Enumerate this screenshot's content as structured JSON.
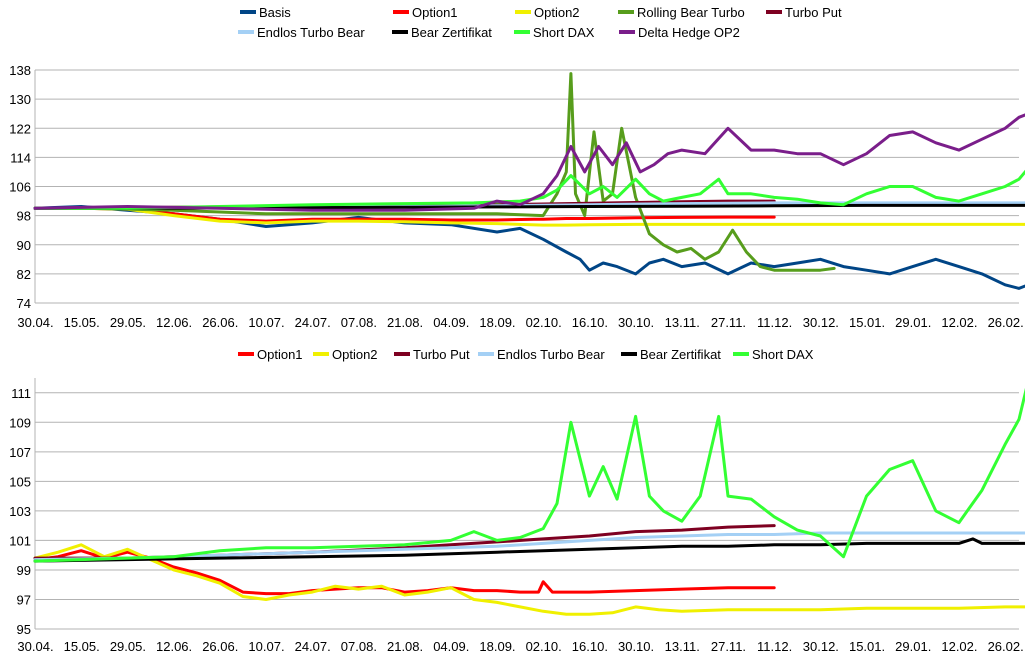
{
  "colors": {
    "Basis": "#004586",
    "Option1": "#ff0000",
    "Option2": "#f0f000",
    "Rolling Bear Turbo": "#579d1c",
    "Turbo Put": "#7e0021",
    "Endlos Turbo Bear": "#a4d0f5",
    "Bear Zertifikat": "#000000",
    "Short DAX": "#33ff33",
    "Delta Hedge OP2": "#7a1e8a",
    "grid": "#b3b3b3"
  },
  "chart_data": [
    {
      "type": "line",
      "title": "",
      "legend_position": "top",
      "legend": [
        "Basis",
        "Option1",
        "Option2",
        "Rolling Bear Turbo",
        "Turbo Put",
        "Endlos Turbo Bear",
        "Bear Zertifikat",
        "Short DAX",
        "Delta Hedge OP2"
      ],
      "x_ticks": [
        "30.04.",
        "15.05.",
        "29.05.",
        "12.06.",
        "26.06.",
        "10.07.",
        "24.07.",
        "07.08.",
        "21.08.",
        "04.09.",
        "18.09.",
        "02.10.",
        "16.10.",
        "30.10.",
        "13.11.",
        "27.11.",
        "11.12.",
        "30.12.",
        "15.01.",
        "29.01.",
        "12.02.",
        "26.02."
      ],
      "y_ticks": [
        74,
        82,
        90,
        98,
        106,
        114,
        122,
        130,
        138
      ],
      "ylim": [
        74,
        138
      ],
      "grid": true,
      "series": [
        {
          "name": "Basis",
          "x": [
            0,
            1,
            2,
            3,
            4,
            5,
            6,
            7,
            8,
            9,
            10,
            10.5,
            11,
            11.5,
            11.8,
            12,
            12.3,
            12.6,
            13,
            13.3,
            13.6,
            14,
            14.5,
            15,
            15.5,
            16,
            16.5,
            17,
            17.5,
            18,
            18.5,
            19,
            19.5,
            20,
            20.5,
            21,
            21.3,
            21.5,
            21.7
          ],
          "values": [
            100,
            100.5,
            99.5,
            98.5,
            97,
            95,
            96,
            97.5,
            96,
            95.5,
            93.5,
            94.5,
            91.5,
            88,
            86,
            83,
            85,
            84,
            82,
            85,
            86,
            84,
            85,
            82,
            85,
            84,
            85,
            86,
            84,
            83,
            82,
            84,
            86,
            84,
            82,
            79,
            78,
            79,
            78
          ]
        },
        {
          "name": "Option1",
          "x": [
            0,
            1,
            2,
            3,
            4,
            5,
            6,
            7,
            8,
            9,
            10,
            10.8,
            11,
            11.5,
            12,
            13,
            14,
            15,
            16
          ],
          "values": [
            100,
            100,
            99.8,
            98.5,
            97,
            96.5,
            97,
            97,
            97,
            96.8,
            96.8,
            97,
            97,
            97.2,
            97.2,
            97.4,
            97.5,
            97.6,
            97.6
          ]
        },
        {
          "name": "Option2",
          "x": [
            0,
            1,
            2,
            3,
            4,
            5,
            6,
            7,
            8,
            9,
            10,
            11,
            11.5,
            12,
            13,
            14,
            15,
            16,
            17,
            18,
            19,
            20,
            21,
            21.7
          ],
          "values": [
            100,
            100,
            99.8,
            98,
            96.5,
            96,
            96.5,
            96.5,
            96.3,
            96,
            95.8,
            95.4,
            95.4,
            95.5,
            95.6,
            95.6,
            95.6,
            95.6,
            95.6,
            95.6,
            95.6,
            95.6,
            95.6,
            95.6
          ]
        },
        {
          "name": "Rolling Bear Turbo",
          "x": [
            0,
            1,
            2,
            3,
            4,
            5,
            6,
            7,
            8,
            9,
            10,
            11,
            11.3,
            11.5,
            11.6,
            11.7,
            11.9,
            12.1,
            12.3,
            12.5,
            12.7,
            13,
            13.3,
            13.6,
            13.9,
            14.2,
            14.5,
            14.8,
            15.1,
            15.4,
            15.7,
            16,
            16.5,
            17,
            17.3
          ],
          "values": [
            100,
            100,
            99.8,
            99.5,
            99,
            98.5,
            98.5,
            98.5,
            98.5,
            98.5,
            98.5,
            98,
            104,
            110,
            137,
            104,
            98,
            121,
            102,
            104,
            122,
            103,
            93,
            90,
            88,
            89,
            86,
            88,
            94,
            88,
            84,
            83,
            83,
            83,
            83.5
          ]
        },
        {
          "name": "Turbo Put",
          "x": [
            0,
            2,
            4,
            6,
            8,
            10,
            11,
            12,
            13,
            14,
            15,
            16
          ],
          "values": [
            100,
            100.2,
            100.4,
            100.6,
            100.8,
            101,
            101.2,
            101.4,
            101.6,
            101.8,
            102,
            102
          ]
        },
        {
          "name": "Endlos Turbo Bear",
          "x": [
            0,
            2,
            4,
            6,
            8,
            10,
            12,
            14,
            16,
            18,
            20,
            21.7
          ],
          "values": [
            100,
            100.1,
            100.2,
            100.3,
            100.5,
            100.7,
            101,
            101.3,
            101.5,
            101.5,
            101.5,
            101.5
          ]
        },
        {
          "name": "Bear Zertifikat",
          "x": [
            0,
            2,
            4,
            6,
            8,
            10,
            12,
            14,
            16,
            18,
            20,
            21.7
          ],
          "values": [
            100,
            100,
            100.1,
            100.2,
            100.3,
            100.4,
            100.5,
            100.6,
            100.7,
            100.8,
            100.8,
            100.8
          ]
        },
        {
          "name": "Short DAX",
          "x": [
            0,
            2,
            4,
            6,
            8,
            9.5,
            10.5,
            11,
            11.3,
            11.6,
            12,
            12.3,
            12.6,
            13,
            13.3,
            13.6,
            14,
            14.4,
            14.8,
            15,
            15.5,
            16,
            16.5,
            17,
            17.5,
            18,
            18.5,
            19,
            19.5,
            20,
            20.5,
            21,
            21.3,
            21.5,
            21.7
          ],
          "values": [
            100,
            100,
            100.5,
            101,
            101.3,
            101.5,
            102,
            103,
            105,
            109,
            104,
            106,
            103,
            108,
            104,
            102,
            103,
            104,
            108,
            104,
            104,
            103,
            102.5,
            101.5,
            101,
            104,
            106,
            106,
            103,
            102,
            104,
            106,
            108,
            111,
            109
          ]
        },
        {
          "name": "Delta Hedge OP2",
          "x": [
            0,
            2,
            4,
            6,
            8,
            9.5,
            10,
            10.5,
            11,
            11.3,
            11.6,
            11.9,
            12.2,
            12.5,
            12.8,
            13.1,
            13.4,
            13.7,
            14,
            14.5,
            15,
            15.5,
            16,
            16.5,
            17,
            17.5,
            18,
            18.5,
            19,
            19.5,
            20,
            20.5,
            21,
            21.3,
            21.5,
            21.7
          ],
          "values": [
            100,
            100.5,
            100,
            99.5,
            99.5,
            100,
            102,
            101,
            104,
            109,
            117,
            110,
            117,
            112,
            118,
            110,
            112,
            115,
            116,
            115,
            122,
            116,
            116,
            115,
            115,
            112,
            115,
            120,
            121,
            118,
            116,
            119,
            122,
            125,
            126,
            125
          ]
        }
      ]
    },
    {
      "type": "line",
      "title": "",
      "legend_position": "top",
      "legend": [
        "Option1",
        "Option2",
        "Turbo Put",
        "Endlos Turbo Bear",
        "Bear Zertifikat",
        "Short DAX"
      ],
      "x_ticks": [
        "30.04.",
        "15.05.",
        "29.05.",
        "12.06.",
        "26.06.",
        "10.07.",
        "24.07.",
        "07.08.",
        "21.08.",
        "04.09.",
        "18.09.",
        "02.10.",
        "16.10.",
        "30.10.",
        "13.11.",
        "27.11.",
        "11.12.",
        "30.12.",
        "15.01.",
        "29.01.",
        "12.02.",
        "26.02."
      ],
      "y_ticks": [
        95,
        97,
        99,
        101,
        103,
        105,
        107,
        109,
        111
      ],
      "ylim": [
        95,
        112
      ],
      "grid": true,
      "series": [
        {
          "name": "Option1",
          "x": [
            0,
            0.5,
            1,
            1.5,
            2,
            2.5,
            3,
            3.5,
            4,
            4.5,
            5,
            5.5,
            6,
            6.5,
            7,
            7.5,
            8,
            8.5,
            9,
            9.5,
            10,
            10.5,
            10.9,
            11,
            11.2,
            12,
            13,
            14,
            15,
            16
          ],
          "values": [
            99.7,
            99.9,
            100.3,
            99.8,
            100.2,
            99.8,
            99.2,
            98.8,
            98.3,
            97.5,
            97.4,
            97.4,
            97.6,
            97.7,
            97.8,
            97.8,
            97.5,
            97.6,
            97.8,
            97.6,
            97.6,
            97.5,
            97.5,
            98.2,
            97.5,
            97.5,
            97.6,
            97.7,
            97.8,
            97.8
          ]
        },
        {
          "name": "Option2",
          "x": [
            0,
            0.5,
            1,
            1.5,
            2,
            2.5,
            3,
            3.5,
            4,
            4.5,
            5,
            5.5,
            6,
            6.5,
            7,
            7.5,
            8,
            8.5,
            9,
            9.5,
            10,
            10.5,
            11,
            11.5,
            12,
            12.5,
            13,
            13.5,
            14,
            15,
            16,
            17,
            18,
            19,
            20,
            21,
            21.7
          ],
          "values": [
            99.8,
            100.2,
            100.7,
            99.9,
            100.4,
            99.7,
            99.0,
            98.6,
            98.1,
            97.2,
            97.0,
            97.3,
            97.5,
            97.9,
            97.7,
            97.9,
            97.3,
            97.5,
            97.8,
            97.0,
            96.8,
            96.5,
            96.2,
            96.0,
            96.0,
            96.1,
            96.5,
            96.3,
            96.2,
            96.3,
            96.3,
            96.3,
            96.4,
            96.4,
            96.4,
            96.5,
            96.5
          ]
        },
        {
          "name": "Turbo Put",
          "x": [
            0,
            2,
            4,
            6,
            8,
            9,
            10,
            11,
            12,
            13,
            14,
            15,
            16
          ],
          "values": [
            99.8,
            99.8,
            100,
            100.2,
            100.5,
            100.7,
            100.9,
            101.1,
            101.3,
            101.6,
            101.7,
            101.9,
            102.0
          ]
        },
        {
          "name": "Endlos Turbo Bear",
          "x": [
            0,
            2,
            4,
            6,
            8,
            10,
            11,
            12,
            13,
            14,
            15,
            16,
            17,
            18,
            19,
            20,
            21,
            21.7
          ],
          "values": [
            99.7,
            99.8,
            100,
            100.2,
            100.4,
            100.6,
            100.8,
            101,
            101.2,
            101.3,
            101.4,
            101.4,
            101.5,
            101.5,
            101.5,
            101.5,
            101.5,
            101.5
          ]
        },
        {
          "name": "Bear Zertifikat",
          "x": [
            0,
            2,
            4,
            6,
            8,
            10,
            11,
            12,
            13,
            14,
            15,
            16,
            17,
            18,
            19,
            20,
            20.3,
            20.5,
            21,
            21.7
          ],
          "values": [
            99.6,
            99.7,
            99.8,
            99.9,
            100.0,
            100.2,
            100.3,
            100.4,
            100.5,
            100.6,
            100.6,
            100.7,
            100.7,
            100.8,
            100.8,
            100.8,
            101.1,
            100.8,
            100.8,
            100.8
          ]
        },
        {
          "name": "Short DAX",
          "x": [
            0,
            1,
            2,
            3,
            4,
            5,
            6,
            7,
            8,
            9,
            9.5,
            10,
            10.5,
            11,
            11.3,
            11.6,
            12,
            12.3,
            12.6,
            13,
            13.3,
            13.6,
            14,
            14.4,
            14.8,
            15,
            15.5,
            16,
            16.5,
            17,
            17.5,
            18,
            18.5,
            19,
            19.5,
            20,
            20.5,
            21,
            21.3,
            21.5,
            21.7
          ],
          "values": [
            99.6,
            99.7,
            99.8,
            99.9,
            100.3,
            100.5,
            100.5,
            100.6,
            100.7,
            101.0,
            101.6,
            101.0,
            101.2,
            101.8,
            103.5,
            109,
            104,
            106,
            103.8,
            109.4,
            104,
            103,
            102.3,
            104,
            109.4,
            104,
            103.8,
            102.6,
            101.7,
            101.3,
            99.9,
            104,
            105.8,
            106.4,
            103,
            102.2,
            104.4,
            107.5,
            109.2,
            111.8,
            109.4
          ]
        }
      ]
    }
  ]
}
